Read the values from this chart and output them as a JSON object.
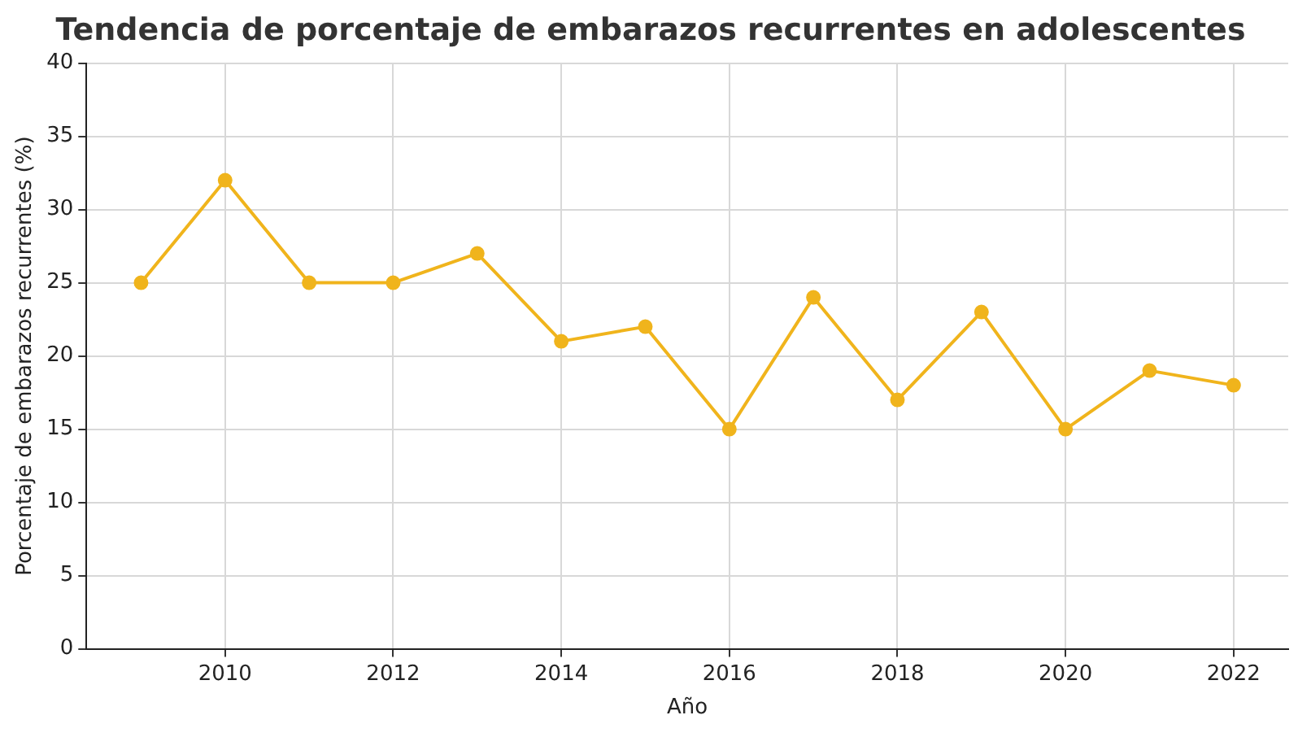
{
  "chart_data": {
    "type": "line",
    "title": "Tendencia de porcentaje de embarazos recurrentes en adolescentes",
    "xlabel": "Año",
    "ylabel": "Porcentaje de embarazos recurrentes (%)",
    "x": [
      2009,
      2010,
      2011,
      2012,
      2013,
      2014,
      2015,
      2016,
      2017,
      2018,
      2019,
      2020,
      2021,
      2022
    ],
    "series": [
      {
        "color": "#f0b41c",
        "values": [
          25,
          32,
          25,
          25,
          27,
          21,
          22,
          15,
          24,
          17,
          23,
          15,
          19,
          18
        ]
      }
    ],
    "xlim": [
      2008.35,
      2022.65
    ],
    "xticks": [
      2010,
      2012,
      2014,
      2016,
      2018,
      2020,
      2022
    ],
    "ylim": [
      0,
      40
    ],
    "yticks": [
      0,
      5,
      10,
      15,
      20,
      25,
      30,
      35,
      40
    ],
    "grid": true,
    "marker": "circle",
    "line_style": "solid"
  }
}
